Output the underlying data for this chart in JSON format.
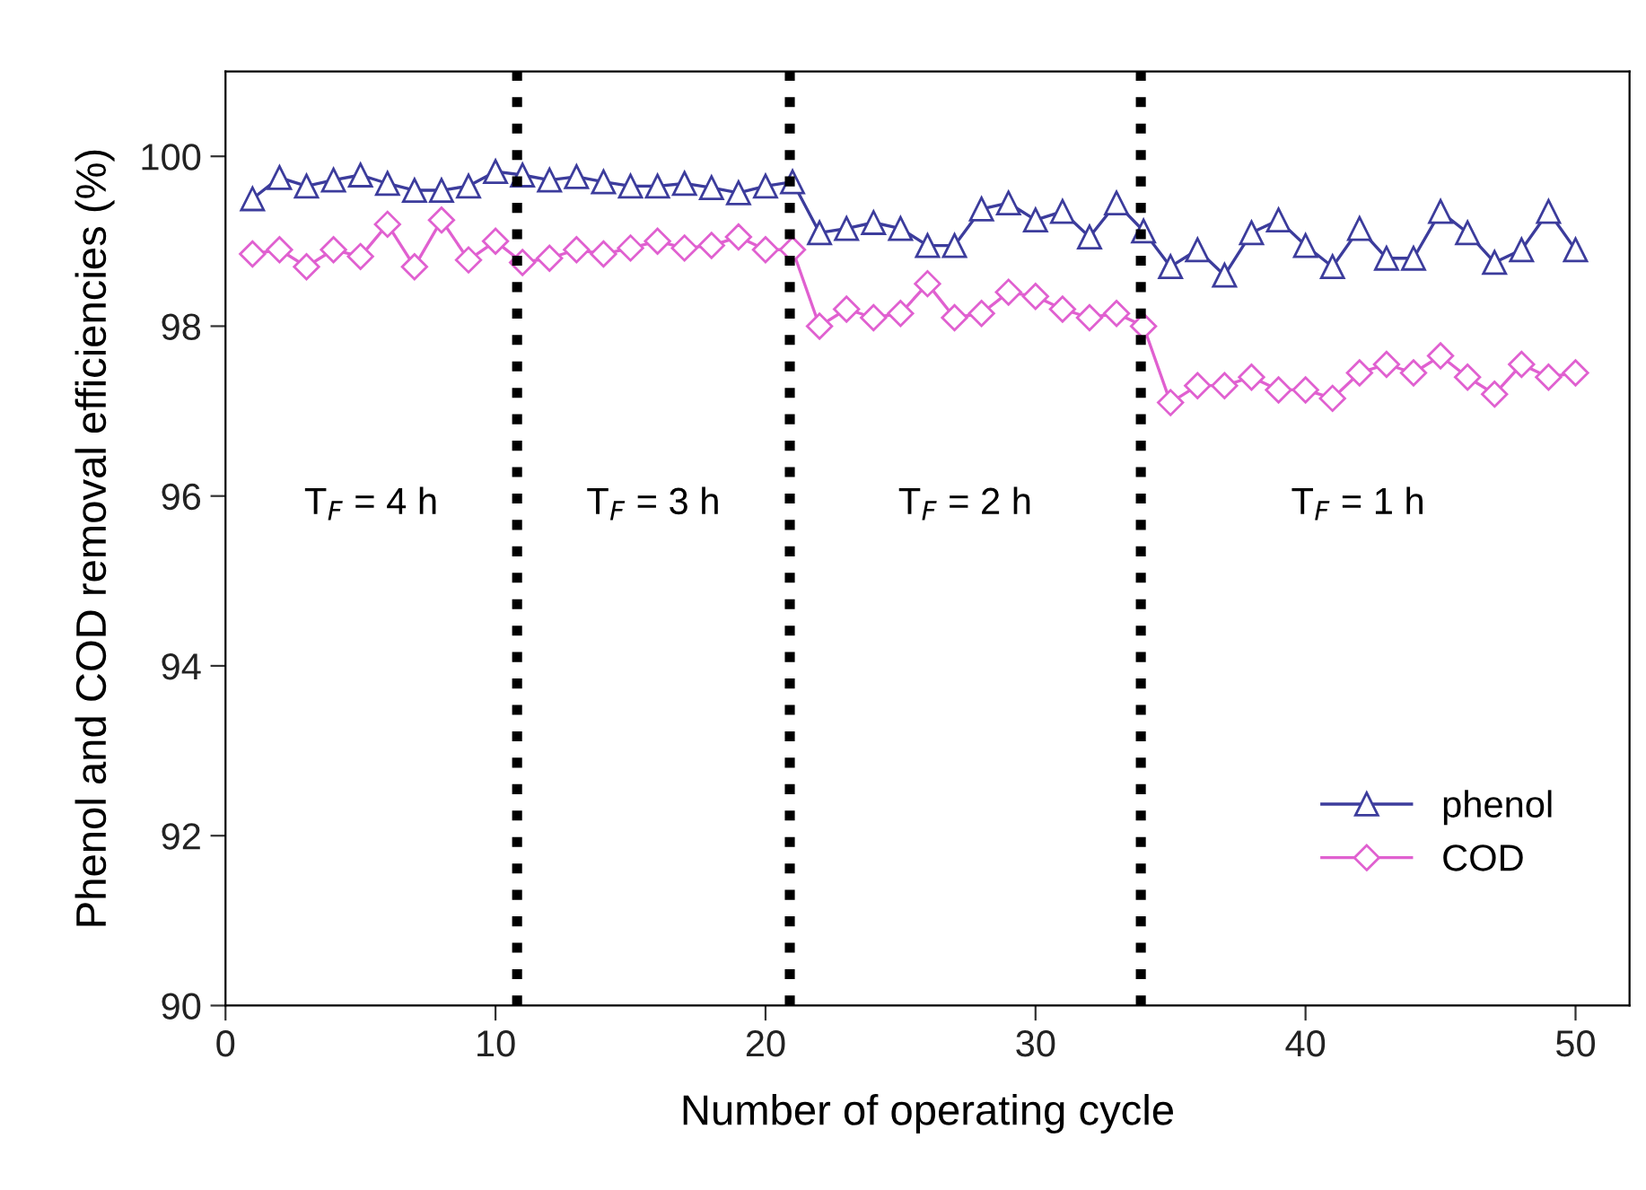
{
  "chart_data": {
    "type": "line",
    "xlabel": "Number of operating cycle",
    "ylabel": "Phenol and COD removal efficiencies (%)",
    "x": [
      1,
      2,
      3,
      4,
      5,
      6,
      7,
      8,
      9,
      10,
      11,
      12,
      13,
      14,
      15,
      16,
      17,
      18,
      19,
      20,
      21,
      22,
      23,
      24,
      25,
      26,
      27,
      28,
      29,
      30,
      31,
      32,
      33,
      34,
      35,
      36,
      37,
      38,
      39,
      40,
      41,
      42,
      43,
      44,
      45,
      46,
      47,
      48,
      49,
      50
    ],
    "series": [
      {
        "name": "phenol",
        "color": "#3c3c9c",
        "marker": "triangle",
        "values": [
          99.5,
          99.75,
          99.65,
          99.72,
          99.78,
          99.68,
          99.6,
          99.6,
          99.65,
          99.82,
          99.78,
          99.72,
          99.76,
          99.7,
          99.65,
          99.65,
          99.68,
          99.63,
          99.57,
          99.65,
          99.7,
          99.1,
          99.15,
          99.22,
          99.15,
          98.95,
          98.95,
          99.38,
          99.45,
          99.25,
          99.35,
          99.05,
          99.45,
          99.12,
          98.7,
          98.9,
          98.6,
          99.1,
          99.25,
          98.95,
          98.7,
          99.15,
          98.8,
          98.8,
          99.35,
          99.1,
          98.75,
          98.9,
          99.35,
          98.9
        ]
      },
      {
        "name": "COD",
        "color": "#e060d0",
        "marker": "diamond",
        "values": [
          98.85,
          98.9,
          98.7,
          98.9,
          98.82,
          99.2,
          98.7,
          99.25,
          98.78,
          99.0,
          98.75,
          98.8,
          98.9,
          98.85,
          98.92,
          99.0,
          98.92,
          98.95,
          99.05,
          98.9,
          98.9,
          98.0,
          98.2,
          98.1,
          98.15,
          98.5,
          98.1,
          98.15,
          98.4,
          98.35,
          98.2,
          98.1,
          98.15,
          98.0,
          97.1,
          97.3,
          97.3,
          97.4,
          97.25,
          97.25,
          97.15,
          97.45,
          97.55,
          97.45,
          97.65,
          97.4,
          97.2,
          97.55,
          97.4,
          97.45
        ]
      }
    ],
    "xlim": [
      0,
      52
    ],
    "xticks": [
      0,
      10,
      20,
      30,
      40,
      50
    ],
    "ylim": [
      90,
      101
    ],
    "yticks": [
      90,
      92,
      94,
      96,
      98,
      100
    ],
    "ref_lines": [
      {
        "axis": "x",
        "value": 10.8,
        "color": "#000000",
        "line_style": "dotted"
      },
      {
        "axis": "x",
        "value": 20.9,
        "color": "#000000",
        "line_style": "dotted"
      },
      {
        "axis": "x",
        "value": 33.9,
        "color": "#000000",
        "line_style": "dotted"
      }
    ],
    "annotations": [
      "T$_{F}$ = 4 h",
      "T$_{F}$ = 3 h",
      "T$_{F}$ = 2 h",
      "T$_{F}$ = 1 h"
    ],
    "legend": "bottom right",
    "grid": false
  }
}
